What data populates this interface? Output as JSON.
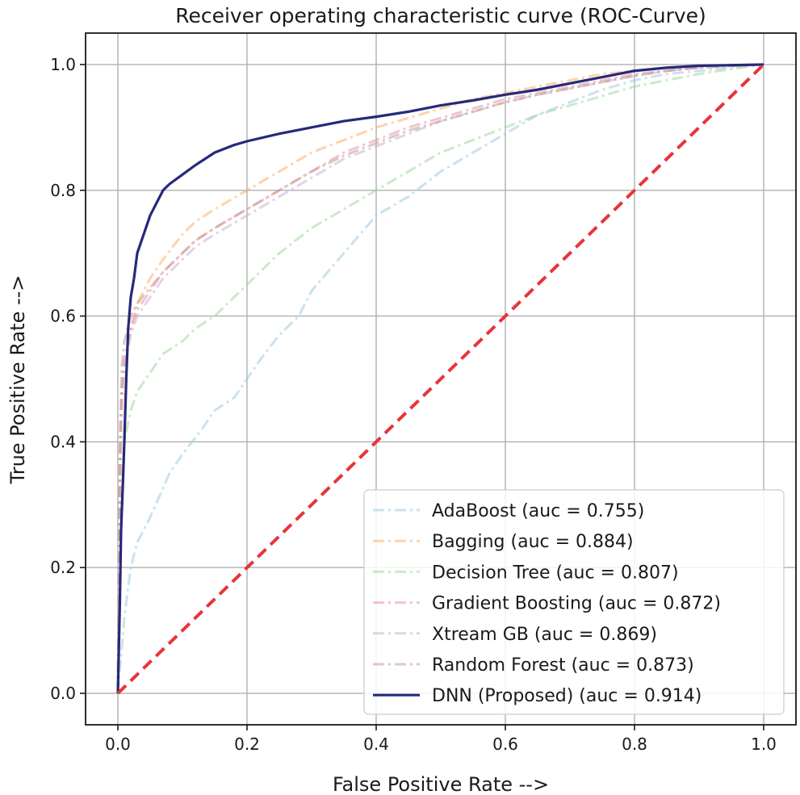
{
  "chart_data": {
    "type": "line",
    "title": "Receiver operating characteristic curve (ROC-Curve)",
    "xlabel": "False Positive Rate -->",
    "ylabel": "True Positive Rate -->",
    "xlim": [
      -0.05,
      1.05
    ],
    "ylim": [
      -0.05,
      1.05
    ],
    "xticks": [
      0.0,
      0.2,
      0.4,
      0.6,
      0.8,
      1.0
    ],
    "yticks": [
      0.0,
      0.2,
      0.4,
      0.6,
      0.8,
      1.0
    ],
    "xtick_labels": [
      "0.0",
      "0.2",
      "0.4",
      "0.6",
      "0.8",
      "1.0"
    ],
    "ytick_labels": [
      "0.0",
      "0.2",
      "0.4",
      "0.6",
      "0.8",
      "1.0"
    ],
    "grid": true,
    "legend_position": "lower-right",
    "series": [
      {
        "name": "AdaBoost (auc = 0.755)",
        "color": "#9ecae1",
        "style": "dashdot",
        "alpha": 0.55,
        "x": [
          0.0,
          0.005,
          0.01,
          0.02,
          0.03,
          0.05,
          0.08,
          0.1,
          0.13,
          0.15,
          0.18,
          0.2,
          0.22,
          0.25,
          0.28,
          0.3,
          0.35,
          0.4,
          0.45,
          0.5,
          0.55,
          0.6,
          0.65,
          0.7,
          0.75,
          0.8,
          0.85,
          0.9,
          0.95,
          1.0
        ],
        "y": [
          0.0,
          0.06,
          0.12,
          0.2,
          0.24,
          0.28,
          0.35,
          0.38,
          0.42,
          0.45,
          0.47,
          0.5,
          0.53,
          0.57,
          0.6,
          0.64,
          0.7,
          0.76,
          0.79,
          0.83,
          0.86,
          0.89,
          0.92,
          0.94,
          0.96,
          0.975,
          0.985,
          0.99,
          0.995,
          1.0
        ]
      },
      {
        "name": "Bagging (auc = 0.884)",
        "color": "#fdae6b",
        "style": "dashdot",
        "alpha": 0.55,
        "x": [
          0.0,
          0.003,
          0.006,
          0.01,
          0.02,
          0.03,
          0.05,
          0.07,
          0.1,
          0.12,
          0.15,
          0.2,
          0.25,
          0.3,
          0.35,
          0.4,
          0.45,
          0.5,
          0.55,
          0.6,
          0.65,
          0.7,
          0.75,
          0.8,
          0.85,
          0.9,
          0.95,
          1.0
        ],
        "y": [
          0.0,
          0.3,
          0.45,
          0.52,
          0.58,
          0.62,
          0.66,
          0.69,
          0.73,
          0.75,
          0.77,
          0.8,
          0.83,
          0.86,
          0.88,
          0.9,
          0.915,
          0.93,
          0.945,
          0.955,
          0.965,
          0.975,
          0.985,
          0.99,
          0.995,
          0.998,
          0.999,
          1.0
        ]
      },
      {
        "name": "Decision Tree (auc = 0.807)",
        "color": "#a1d99b",
        "style": "dashdot",
        "alpha": 0.55,
        "x": [
          0.0,
          0.003,
          0.006,
          0.01,
          0.02,
          0.03,
          0.05,
          0.07,
          0.1,
          0.12,
          0.15,
          0.18,
          0.2,
          0.25,
          0.3,
          0.35,
          0.4,
          0.45,
          0.5,
          0.55,
          0.6,
          0.65,
          0.7,
          0.75,
          0.8,
          0.85,
          0.9,
          0.95,
          1.0
        ],
        "y": [
          0.0,
          0.2,
          0.33,
          0.4,
          0.45,
          0.48,
          0.51,
          0.54,
          0.56,
          0.58,
          0.6,
          0.63,
          0.65,
          0.7,
          0.74,
          0.77,
          0.8,
          0.83,
          0.86,
          0.88,
          0.9,
          0.92,
          0.935,
          0.95,
          0.965,
          0.975,
          0.985,
          0.993,
          1.0
        ]
      },
      {
        "name": "Gradient Boosting (auc = 0.872)",
        "color": "#e7969c",
        "style": "dashdot",
        "alpha": 0.55,
        "x": [
          0.0,
          0.003,
          0.006,
          0.01,
          0.02,
          0.03,
          0.05,
          0.07,
          0.1,
          0.12,
          0.15,
          0.2,
          0.25,
          0.3,
          0.35,
          0.4,
          0.45,
          0.5,
          0.55,
          0.6,
          0.65,
          0.7,
          0.75,
          0.8,
          0.85,
          0.9,
          0.95,
          1.0
        ],
        "y": [
          0.0,
          0.35,
          0.48,
          0.53,
          0.58,
          0.61,
          0.64,
          0.67,
          0.7,
          0.72,
          0.74,
          0.77,
          0.8,
          0.83,
          0.86,
          0.88,
          0.9,
          0.915,
          0.93,
          0.945,
          0.955,
          0.965,
          0.975,
          0.985,
          0.99,
          0.995,
          0.998,
          1.0
        ]
      },
      {
        "name": "Xtream GB (auc = 0.869)",
        "color": "#c5b0d5",
        "style": "dashdot",
        "alpha": 0.55,
        "x": [
          0.0,
          0.003,
          0.006,
          0.01,
          0.02,
          0.03,
          0.05,
          0.07,
          0.1,
          0.12,
          0.15,
          0.2,
          0.25,
          0.3,
          0.35,
          0.4,
          0.45,
          0.5,
          0.55,
          0.6,
          0.65,
          0.7,
          0.75,
          0.8,
          0.85,
          0.9,
          0.95,
          1.0
        ],
        "y": [
          0.0,
          0.34,
          0.47,
          0.52,
          0.57,
          0.6,
          0.63,
          0.66,
          0.69,
          0.71,
          0.73,
          0.76,
          0.79,
          0.82,
          0.85,
          0.87,
          0.89,
          0.91,
          0.925,
          0.94,
          0.952,
          0.962,
          0.972,
          0.982,
          0.99,
          0.995,
          0.998,
          1.0
        ]
      },
      {
        "name": "Random Forest (auc = 0.873)",
        "color": "#c49c94",
        "style": "dashdot",
        "alpha": 0.55,
        "x": [
          0.0,
          0.003,
          0.006,
          0.01,
          0.02,
          0.03,
          0.05,
          0.07,
          0.1,
          0.12,
          0.15,
          0.2,
          0.25,
          0.3,
          0.35,
          0.4,
          0.45,
          0.5,
          0.55,
          0.6,
          0.65,
          0.7,
          0.75,
          0.8,
          0.85,
          0.9,
          0.95,
          1.0
        ],
        "y": [
          0.0,
          0.4,
          0.52,
          0.56,
          0.6,
          0.62,
          0.645,
          0.67,
          0.7,
          0.72,
          0.74,
          0.77,
          0.8,
          0.83,
          0.855,
          0.875,
          0.895,
          0.91,
          0.925,
          0.94,
          0.952,
          0.962,
          0.972,
          0.982,
          0.99,
          0.995,
          0.998,
          1.0
        ]
      },
      {
        "name": "DNN (Proposed) (auc = 0.914)",
        "color": "#26297a",
        "style": "solid",
        "alpha": 1.0,
        "x": [
          0.0,
          0.003,
          0.005,
          0.008,
          0.01,
          0.013,
          0.016,
          0.02,
          0.025,
          0.03,
          0.04,
          0.05,
          0.06,
          0.07,
          0.08,
          0.1,
          0.12,
          0.15,
          0.18,
          0.2,
          0.25,
          0.3,
          0.35,
          0.4,
          0.45,
          0.5,
          0.55,
          0.6,
          0.65,
          0.7,
          0.75,
          0.8,
          0.85,
          0.9,
          0.95,
          1.0
        ],
        "y": [
          0.0,
          0.14,
          0.26,
          0.34,
          0.4,
          0.5,
          0.58,
          0.63,
          0.66,
          0.7,
          0.73,
          0.76,
          0.78,
          0.8,
          0.81,
          0.825,
          0.84,
          0.86,
          0.872,
          0.878,
          0.89,
          0.9,
          0.91,
          0.917,
          0.925,
          0.935,
          0.943,
          0.952,
          0.96,
          0.97,
          0.98,
          0.99,
          0.995,
          0.998,
          0.999,
          1.0
        ]
      }
    ],
    "reference_line": {
      "color": "#e8343a",
      "style": "dashed",
      "x": [
        0.0,
        1.0
      ],
      "y": [
        0.0,
        1.0
      ]
    }
  }
}
